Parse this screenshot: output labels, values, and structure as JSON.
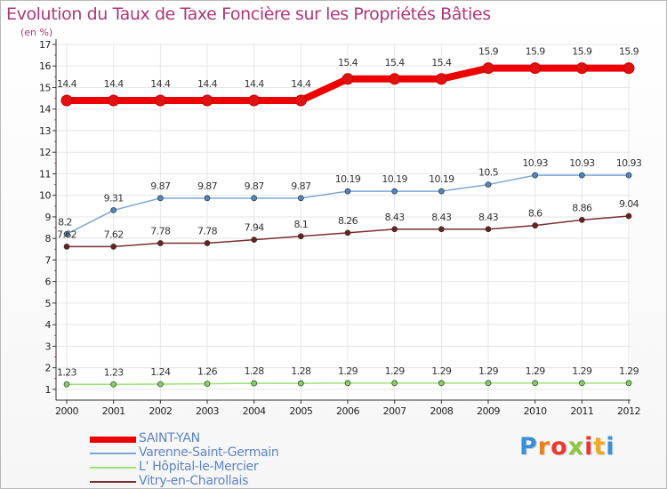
{
  "header": {
    "title": "Evolution du Taux de Taxe Foncière sur les Propriétés Bâties",
    "unit": "(en %)"
  },
  "brand": {
    "name": "Proxiti",
    "letter_colors": [
      "#3b8fd8",
      "#ee7d1b",
      "#e9392f",
      "#8cc63e",
      "#e9392f",
      "#f4a81d",
      "#3b8fd8"
    ]
  },
  "chart_data": {
    "type": "line",
    "title": "Evolution du Taux de Taxe Foncière sur les Propriétés Bâties",
    "ylabel": "(en %)",
    "xlabel": "",
    "x": [
      "2000",
      "2001",
      "2002",
      "2003",
      "2004",
      "2005",
      "2006",
      "2007",
      "2008",
      "2009",
      "2010",
      "2011",
      "2012"
    ],
    "ylim": [
      0.5,
      17
    ],
    "yticks": [
      "1",
      "2",
      "3",
      "4",
      "5",
      "6",
      "7",
      "8",
      "9",
      "10",
      "11",
      "12",
      "13",
      "14",
      "15",
      "16",
      "17"
    ],
    "grid": true,
    "series": [
      {
        "name": "SAINT-YAN",
        "color": "#ee0000",
        "marker": "#e21111",
        "values": [
          14.4,
          14.4,
          14.4,
          14.4,
          14.4,
          14.4,
          15.4,
          15.4,
          15.4,
          15.9,
          15.9,
          15.9,
          15.9
        ],
        "labels": [
          "14.4",
          "14.4",
          "14.4",
          "14.4",
          "14.4",
          "14.4",
          "15.4",
          "15.4",
          "15.4",
          "15.9",
          "15.9",
          "15.9",
          "15.9"
        ]
      },
      {
        "name": "Varenne-Saint-Germain",
        "color": "#7ba7d4",
        "marker": "#4f86c0",
        "values": [
          8.2,
          9.31,
          9.87,
          9.87,
          9.87,
          9.87,
          10.19,
          10.19,
          10.19,
          10.5,
          10.93,
          10.93,
          10.93
        ],
        "labels": [
          "8.2",
          "9.31",
          "9.87",
          "9.87",
          "9.87",
          "9.87",
          "10.19",
          "10.19",
          "10.19",
          "10.5",
          "10.93",
          "10.93",
          "10.93"
        ]
      },
      {
        "name": "L' Hôpital-le-Mercier",
        "color": "#9be27a",
        "marker": "#86cf62",
        "values": [
          1.23,
          1.23,
          1.24,
          1.26,
          1.28,
          1.28,
          1.29,
          1.29,
          1.29,
          1.29,
          1.29,
          1.29,
          1.29
        ],
        "labels": [
          "1.23",
          "1.23",
          "1.24",
          "1.26",
          "1.28",
          "1.28",
          "1.29",
          "1.29",
          "1.29",
          "1.29",
          "1.29",
          "1.29",
          "1.29"
        ]
      },
      {
        "name": "Vitry-en-Charollais",
        "color": "#7a2e2e",
        "marker": "#6b2020",
        "values": [
          7.62,
          7.62,
          7.78,
          7.78,
          7.94,
          8.1,
          8.26,
          8.43,
          8.43,
          8.43,
          8.6,
          8.86,
          9.04
        ],
        "labels": [
          "7.62",
          "7.62",
          "7.78",
          "7.78",
          "7.94",
          "8.1",
          "8.26",
          "8.43",
          "8.43",
          "8.43",
          "8.6",
          "8.86",
          "9.04"
        ]
      }
    ]
  }
}
